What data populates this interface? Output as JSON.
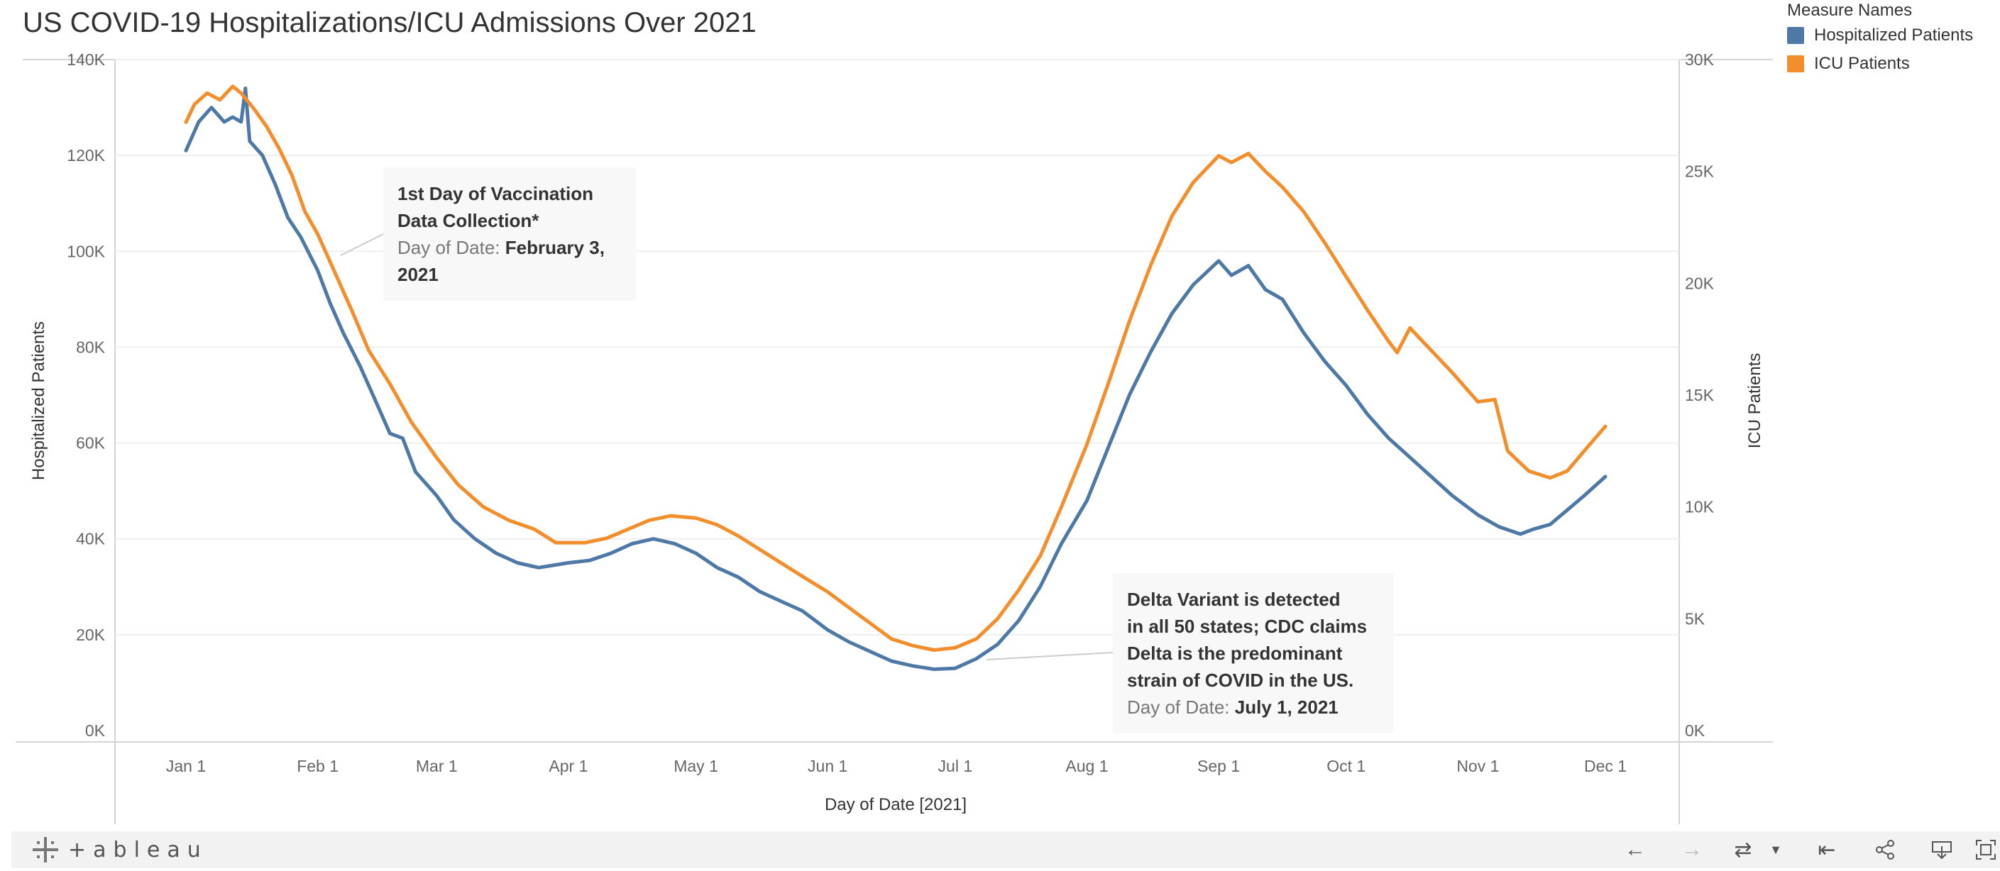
{
  "chart_data": {
    "type": "line",
    "title": "US COVID-19 Hospitalizations/ICU Admissions Over 2021",
    "xlabel": "Day of Date [2021]",
    "x_ticks": [
      "Jan 1",
      "Feb 1",
      "Mar 1",
      "Apr 1",
      "May 1",
      "Jun 1",
      "Jul 1",
      "Aug 1",
      "Sep 1",
      "Oct 1",
      "Nov 1",
      "Dec 1"
    ],
    "x_range": [
      "2021-01-01",
      "2021-12-01"
    ],
    "y_left": {
      "label": "Hospitalized Patients",
      "ticks": [
        "0K",
        "20K",
        "40K",
        "60K",
        "80K",
        "100K",
        "120K",
        "140K"
      ],
      "range": [
        0,
        140000
      ]
    },
    "y_right": {
      "label": "ICU Patients",
      "ticks": [
        "0K",
        "5K",
        "10K",
        "15K",
        "20K",
        "25K",
        "30K"
      ],
      "range": [
        0,
        30000
      ]
    },
    "legend_position": "top-right",
    "series": [
      {
        "name": "Hospitalized Patients",
        "axis": "left",
        "color": "#4e79a7",
        "points": [
          [
            "2021-01-01",
            121000
          ],
          [
            "2021-01-02",
            123000
          ],
          [
            "2021-01-04",
            127000
          ],
          [
            "2021-01-07",
            130000
          ],
          [
            "2021-01-10",
            127000
          ],
          [
            "2021-01-12",
            128000
          ],
          [
            "2021-01-14",
            127000
          ],
          [
            "2021-01-15",
            134000
          ],
          [
            "2021-01-16",
            123000
          ],
          [
            "2021-01-19",
            120000
          ],
          [
            "2021-01-22",
            114000
          ],
          [
            "2021-01-25",
            107000
          ],
          [
            "2021-01-28",
            103000
          ],
          [
            "2021-02-01",
            96000
          ],
          [
            "2021-02-04",
            89000
          ],
          [
            "2021-02-07",
            83000
          ],
          [
            "2021-02-11",
            76000
          ],
          [
            "2021-02-15",
            68000
          ],
          [
            "2021-02-18",
            62000
          ],
          [
            "2021-02-21",
            61000
          ],
          [
            "2021-02-24",
            54000
          ],
          [
            "2021-03-01",
            49000
          ],
          [
            "2021-03-05",
            44000
          ],
          [
            "2021-03-10",
            40000
          ],
          [
            "2021-03-15",
            37000
          ],
          [
            "2021-03-20",
            35000
          ],
          [
            "2021-03-25",
            34000
          ],
          [
            "2021-04-01",
            35000
          ],
          [
            "2021-04-06",
            35500
          ],
          [
            "2021-04-11",
            37000
          ],
          [
            "2021-04-16",
            39000
          ],
          [
            "2021-04-21",
            40000
          ],
          [
            "2021-04-26",
            39000
          ],
          [
            "2021-05-01",
            37000
          ],
          [
            "2021-05-06",
            34000
          ],
          [
            "2021-05-11",
            32000
          ],
          [
            "2021-05-16",
            29000
          ],
          [
            "2021-05-21",
            27000
          ],
          [
            "2021-05-26",
            25000
          ],
          [
            "2021-06-01",
            21000
          ],
          [
            "2021-06-06",
            18500
          ],
          [
            "2021-06-11",
            16500
          ],
          [
            "2021-06-16",
            14500
          ],
          [
            "2021-06-21",
            13500
          ],
          [
            "2021-06-26",
            12800
          ],
          [
            "2021-07-01",
            13000
          ],
          [
            "2021-07-06",
            15000
          ],
          [
            "2021-07-11",
            18000
          ],
          [
            "2021-07-16",
            23000
          ],
          [
            "2021-07-21",
            30000
          ],
          [
            "2021-07-26",
            39000
          ],
          [
            "2021-08-01",
            48000
          ],
          [
            "2021-08-06",
            59000
          ],
          [
            "2021-08-11",
            70000
          ],
          [
            "2021-08-16",
            79000
          ],
          [
            "2021-08-21",
            87000
          ],
          [
            "2021-08-26",
            93000
          ],
          [
            "2021-09-01",
            98000
          ],
          [
            "2021-09-04",
            95000
          ],
          [
            "2021-09-08",
            97000
          ],
          [
            "2021-09-12",
            92000
          ],
          [
            "2021-09-16",
            90000
          ],
          [
            "2021-09-21",
            83000
          ],
          [
            "2021-09-26",
            77000
          ],
          [
            "2021-10-01",
            72000
          ],
          [
            "2021-10-06",
            66000
          ],
          [
            "2021-10-11",
            61000
          ],
          [
            "2021-10-16",
            57000
          ],
          [
            "2021-10-21",
            53000
          ],
          [
            "2021-10-26",
            49000
          ],
          [
            "2021-11-01",
            45000
          ],
          [
            "2021-11-06",
            42500
          ],
          [
            "2021-11-11",
            41000
          ],
          [
            "2021-11-14",
            42000
          ],
          [
            "2021-11-18",
            43000
          ],
          [
            "2021-11-22",
            46000
          ],
          [
            "2021-11-26",
            49000
          ],
          [
            "2021-12-01",
            53000
          ]
        ]
      },
      {
        "name": "ICU Patients",
        "axis": "right",
        "color": "#f28e2b",
        "points": [
          [
            "2021-01-01",
            27200
          ],
          [
            "2021-01-03",
            28000
          ],
          [
            "2021-01-06",
            28500
          ],
          [
            "2021-01-09",
            28200
          ],
          [
            "2021-01-12",
            28800
          ],
          [
            "2021-01-14",
            28500
          ],
          [
            "2021-01-17",
            27800
          ],
          [
            "2021-01-20",
            27000
          ],
          [
            "2021-01-23",
            26000
          ],
          [
            "2021-01-26",
            24800
          ],
          [
            "2021-01-29",
            23200
          ],
          [
            "2021-02-01",
            22200
          ],
          [
            "2021-02-05",
            20500
          ],
          [
            "2021-02-09",
            18800
          ],
          [
            "2021-02-13",
            17000
          ],
          [
            "2021-02-18",
            15500
          ],
          [
            "2021-02-23",
            13800
          ],
          [
            "2021-03-01",
            12200
          ],
          [
            "2021-03-06",
            11000
          ],
          [
            "2021-03-12",
            10000
          ],
          [
            "2021-03-18",
            9400
          ],
          [
            "2021-03-24",
            9000
          ],
          [
            "2021-03-29",
            8400
          ],
          [
            "2021-04-01",
            8400
          ],
          [
            "2021-04-05",
            8400
          ],
          [
            "2021-04-10",
            8600
          ],
          [
            "2021-04-15",
            9000
          ],
          [
            "2021-04-20",
            9400
          ],
          [
            "2021-04-25",
            9600
          ],
          [
            "2021-05-01",
            9500
          ],
          [
            "2021-05-06",
            9200
          ],
          [
            "2021-05-11",
            8700
          ],
          [
            "2021-05-16",
            8100
          ],
          [
            "2021-05-21",
            7500
          ],
          [
            "2021-05-26",
            6900
          ],
          [
            "2021-06-01",
            6200
          ],
          [
            "2021-06-06",
            5500
          ],
          [
            "2021-06-11",
            4800
          ],
          [
            "2021-06-16",
            4100
          ],
          [
            "2021-06-21",
            3800
          ],
          [
            "2021-06-26",
            3600
          ],
          [
            "2021-07-01",
            3700
          ],
          [
            "2021-07-06",
            4100
          ],
          [
            "2021-07-11",
            5000
          ],
          [
            "2021-07-16",
            6300
          ],
          [
            "2021-07-21",
            7800
          ],
          [
            "2021-07-26",
            10000
          ],
          [
            "2021-08-01",
            12800
          ],
          [
            "2021-08-06",
            15500
          ],
          [
            "2021-08-11",
            18300
          ],
          [
            "2021-08-16",
            20800
          ],
          [
            "2021-08-21",
            23000
          ],
          [
            "2021-08-26",
            24500
          ],
          [
            "2021-09-01",
            25700
          ],
          [
            "2021-09-04",
            25400
          ],
          [
            "2021-09-08",
            25800
          ],
          [
            "2021-09-12",
            25000
          ],
          [
            "2021-09-16",
            24300
          ],
          [
            "2021-09-21",
            23200
          ],
          [
            "2021-09-26",
            21800
          ],
          [
            "2021-10-01",
            20300
          ],
          [
            "2021-10-06",
            18800
          ],
          [
            "2021-10-11",
            17400
          ],
          [
            "2021-10-13",
            16900
          ],
          [
            "2021-10-16",
            18000
          ],
          [
            "2021-10-21",
            17000
          ],
          [
            "2021-10-26",
            16000
          ],
          [
            "2021-11-01",
            14700
          ],
          [
            "2021-11-05",
            14800
          ],
          [
            "2021-11-08",
            12500
          ],
          [
            "2021-11-13",
            11600
          ],
          [
            "2021-11-18",
            11300
          ],
          [
            "2021-11-22",
            11600
          ],
          [
            "2021-11-26",
            12500
          ],
          [
            "2021-12-01",
            13600
          ]
        ]
      }
    ],
    "annotations": [
      {
        "title": "1st Day of Vaccination Data Collection*",
        "key": "Day of Date:",
        "value": "February 3, 2021"
      },
      {
        "title": "Delta Variant is detected in all 50 states; CDC claims Delta is the predominant strain of COVID in the US.",
        "key": "Day of Date:",
        "value": "July 1, 2021"
      }
    ]
  },
  "legend": {
    "title": "Measure Names",
    "items": [
      {
        "label": "Hospitalized Patients",
        "color": "#4e79a7"
      },
      {
        "label": "ICU Patients",
        "color": "#f28e2b"
      }
    ]
  },
  "annotations": {
    "first": {
      "title_line1": "1st Day of Vaccination",
      "title_line2": "Data Collection*",
      "key": "Day of Date:",
      "value_line1": "February 3,",
      "value_line2": "2021"
    },
    "second": {
      "line1": "Delta Variant is detected",
      "line2": "in all 50 states; CDC claims",
      "line3": "Delta is the predominant",
      "line4": "strain of COVID in the US.",
      "key": "Day of Date:",
      "value": "July 1, 2021"
    }
  },
  "footer": {
    "logo_text": "+ableau",
    "icons": [
      "undo-icon",
      "redo-icon",
      "revert-icon",
      "dropdown-arrow-icon",
      "reset-icon",
      "share-icon",
      "download-icon",
      "fullscreen-icon"
    ]
  }
}
